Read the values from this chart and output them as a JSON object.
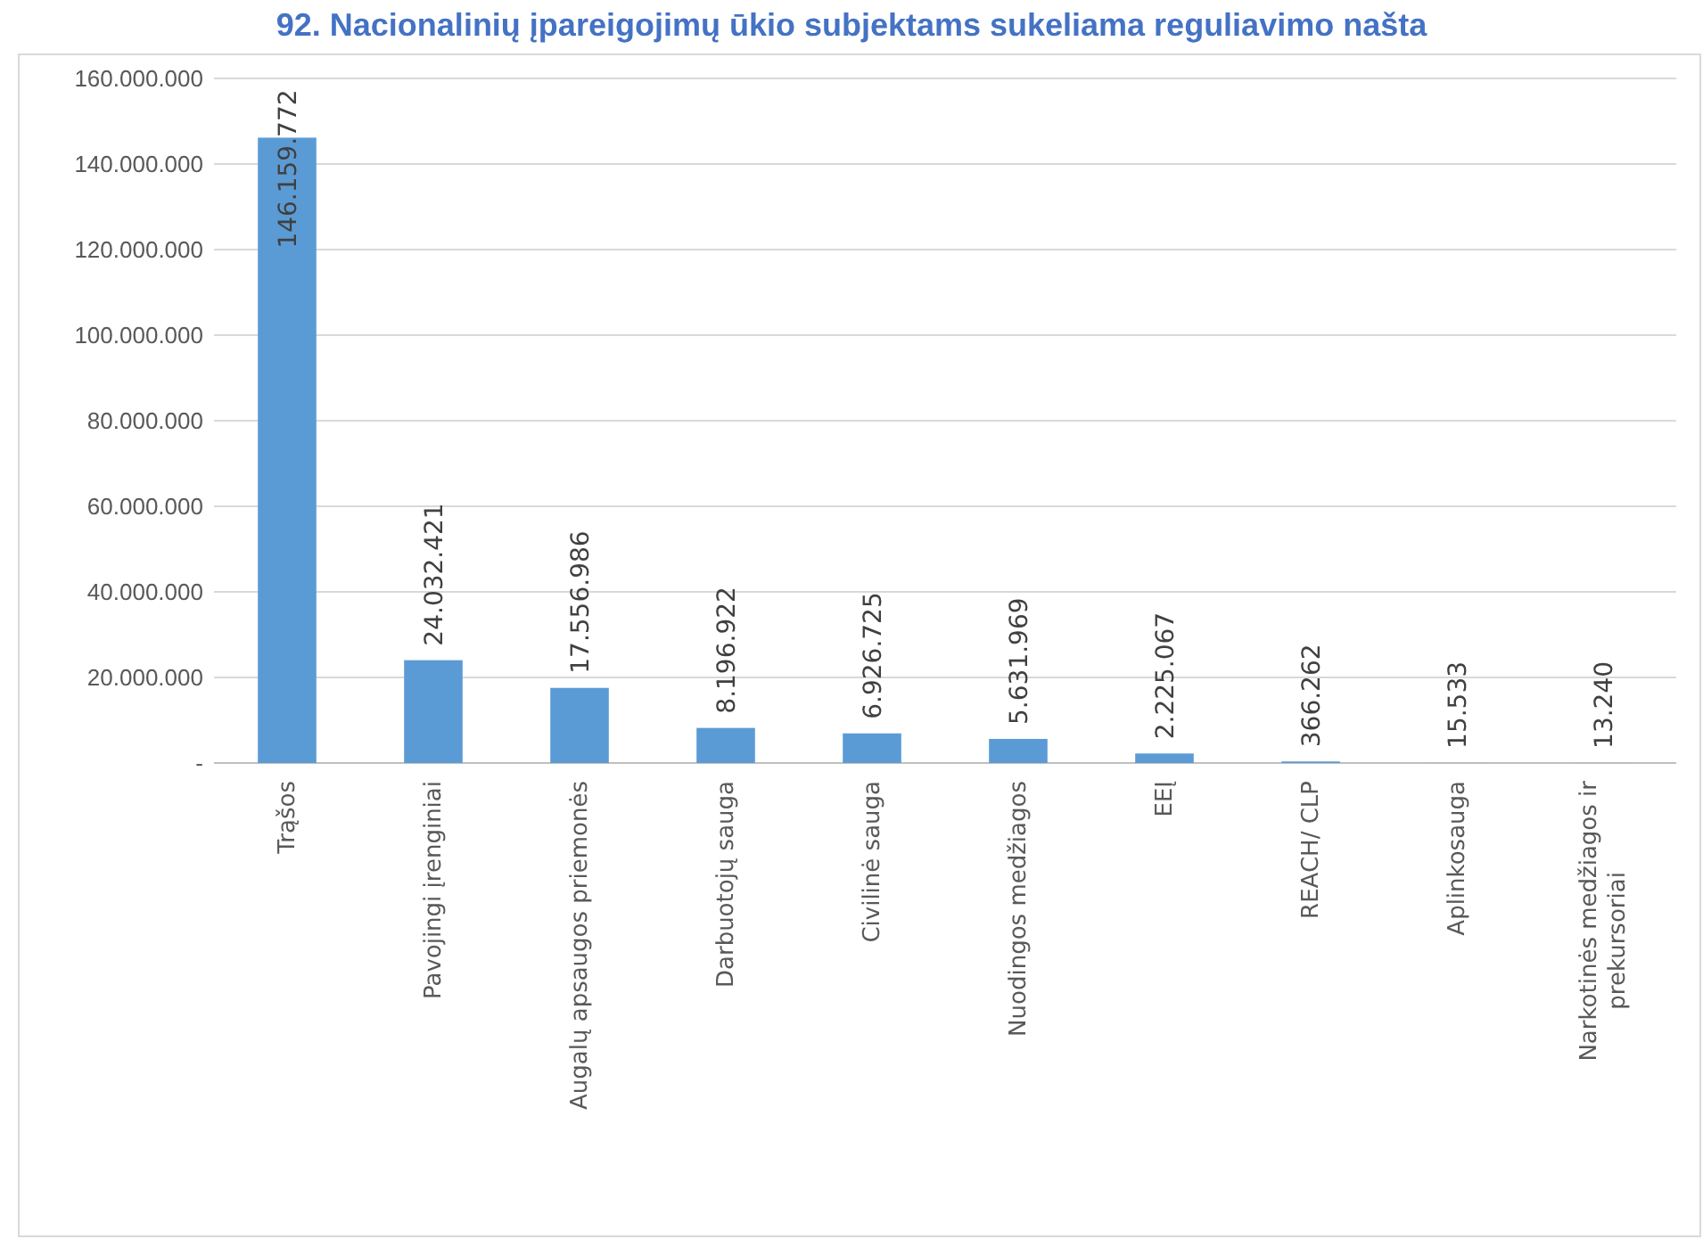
{
  "chart_data": {
    "type": "bar",
    "title": "92. Nacionalinių įpareigojimų ūkio subjektams sukeliama reguliavimo našta",
    "categories": [
      "Trąšos",
      "Pavojingi įrenginiai",
      "Augalų apsaugos priemonės",
      "Darbuotojų sauga",
      "Civilinė sauga",
      "Nuodingos medžiagos",
      "EEĮ",
      "REACH/ CLP",
      "Aplinkosauga",
      "Narkotinės medžiagos ir prekursoriai"
    ],
    "values": [
      146159772,
      24032421,
      17556986,
      8196922,
      6926725,
      5631969,
      2225067,
      366262,
      15533,
      13240
    ],
    "value_labels": [
      "146.159.772",
      "24.032.421",
      "17.556.986",
      "8.196.922",
      "6.926.725",
      "5.631.969",
      "2.225.067",
      "366.262",
      "15.533",
      "13.240"
    ],
    "color": "#5b9bd5",
    "grid": "y",
    "ylim": [
      0,
      160000000
    ],
    "yticks": [
      {
        "value": 0,
        "label": "-"
      },
      {
        "value": 20000000,
        "label": "20.000.000"
      },
      {
        "value": 40000000,
        "label": "40.000.000"
      },
      {
        "value": 60000000,
        "label": "60.000.000"
      },
      {
        "value": 80000000,
        "label": "80.000.000"
      },
      {
        "value": 100000000,
        "label": "100.000.000"
      },
      {
        "value": 120000000,
        "label": "120.000.000"
      },
      {
        "value": 140000000,
        "label": "140.000.000"
      },
      {
        "value": 160000000,
        "label": "160.000.000"
      }
    ]
  }
}
